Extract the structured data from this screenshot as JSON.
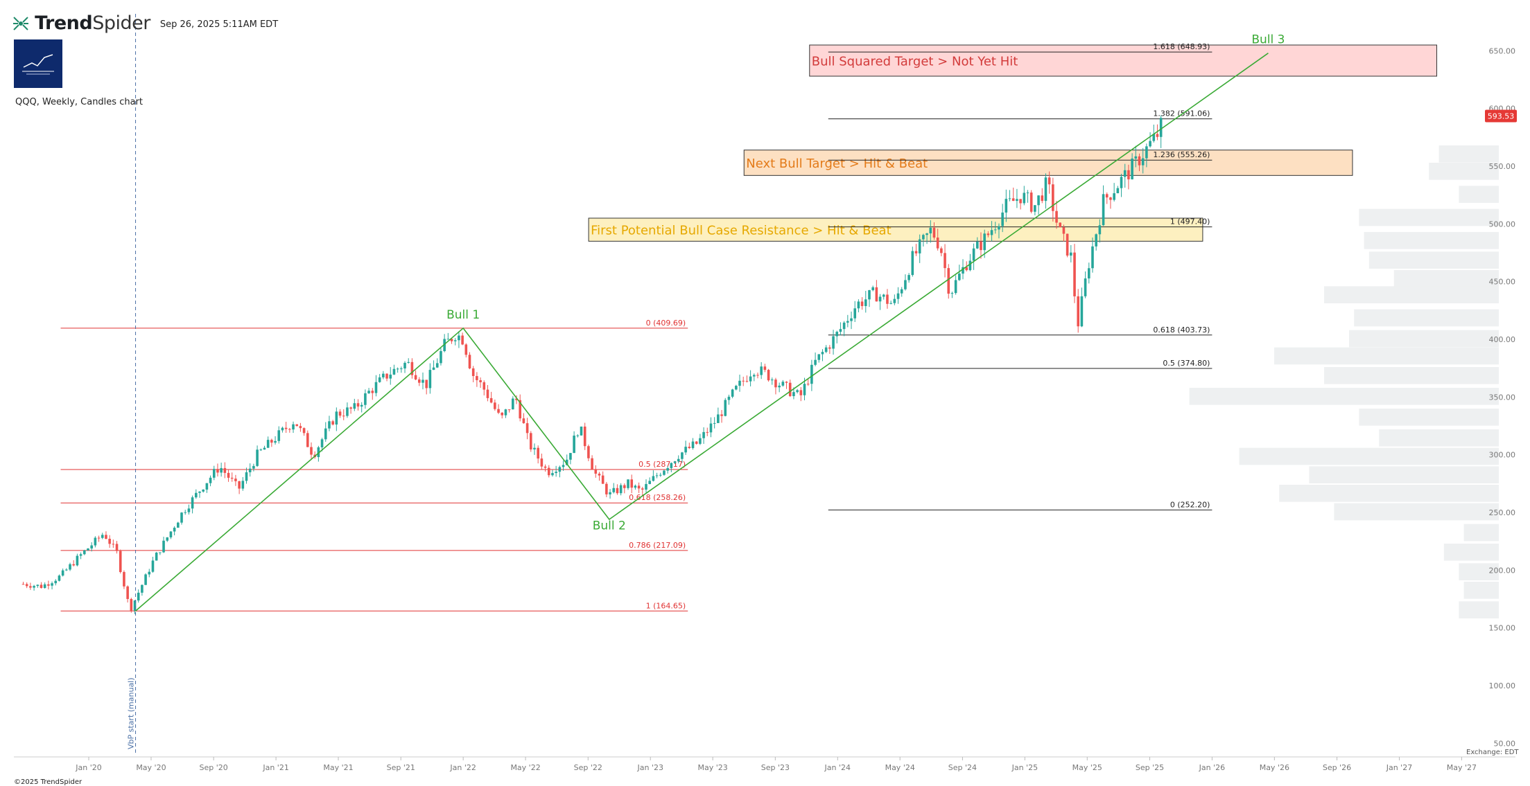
{
  "header": {
    "brand_bold": "Trend",
    "brand_light": "Spider",
    "timestamp": "Sep 26, 2025 5:11AM EDT",
    "symbol_info": "QQQ, Weekly, Candles chart"
  },
  "footer": {
    "copyright": "©2025 TrendSpider",
    "exchange": "Exchange: EDT"
  },
  "colors": {
    "up": "#26a69a",
    "down": "#ef5350",
    "wave": "#3aaa35",
    "fib_red": "#e03131",
    "fib_dark": "#222222",
    "zone_red": "#ffd6d6",
    "zone_orange": "#fde0c2",
    "zone_yellow": "#fdf0c0",
    "volume_profile": "#eef0f1",
    "vbp_line": "#4a6fa5",
    "price_tag": "#e53935"
  },
  "chart_data": {
    "type": "candlestick",
    "ylim": [
      40,
      670
    ],
    "y_ticks": [
      "650.00",
      "600.00",
      "550.00",
      "500.00",
      "450.00",
      "400.00",
      "350.00",
      "300.00",
      "250.00",
      "200.00",
      "150.00",
      "100.00",
      "50.00"
    ],
    "y_tick_values": [
      650,
      600,
      550,
      500,
      450,
      400,
      350,
      300,
      250,
      200,
      150,
      100,
      50
    ],
    "x_ticks": [
      "Jan '20",
      "May '20",
      "Sep '20",
      "Jan '21",
      "May '21",
      "Sep '21",
      "Jan '22",
      "May '22",
      "Sep '22",
      "Jan '23",
      "May '23",
      "Sep '23",
      "Jan '24",
      "May '24",
      "Sep '24",
      "Jan '25",
      "May '25",
      "Sep '25",
      "Jan '26",
      "May '26",
      "Sep '26",
      "Jan '27",
      "May '27"
    ],
    "x_tick_values": [
      2020.0,
      2020.333,
      2020.667,
      2021.0,
      2021.333,
      2021.667,
      2022.0,
      2022.333,
      2022.667,
      2023.0,
      2023.333,
      2023.667,
      2024.0,
      2024.333,
      2024.667,
      2025.0,
      2025.333,
      2025.667,
      2026.0,
      2026.333,
      2026.667,
      2027.0,
      2027.333
    ],
    "last_price": "593.53",
    "price_path": [
      [
        2019.65,
        188
      ],
      [
        2019.75,
        186
      ],
      [
        2019.85,
        195
      ],
      [
        2019.95,
        212
      ],
      [
        2020.08,
        232
      ],
      [
        2020.15,
        215
      ],
      [
        2020.22,
        165
      ],
      [
        2020.35,
        210
      ],
      [
        2020.5,
        250
      ],
      [
        2020.62,
        275
      ],
      [
        2020.7,
        290
      ],
      [
        2020.8,
        270
      ],
      [
        2020.9,
        300
      ],
      [
        2021.0,
        315
      ],
      [
        2021.1,
        330
      ],
      [
        2021.2,
        300
      ],
      [
        2021.32,
        335
      ],
      [
        2021.42,
        340
      ],
      [
        2021.5,
        355
      ],
      [
        2021.6,
        370
      ],
      [
        2021.7,
        380
      ],
      [
        2021.8,
        360
      ],
      [
        2021.9,
        395
      ],
      [
        2021.96,
        405
      ],
      [
        2022.0,
        400
      ],
      [
        2022.05,
        370
      ],
      [
        2022.12,
        355
      ],
      [
        2022.2,
        330
      ],
      [
        2022.28,
        350
      ],
      [
        2022.35,
        310
      ],
      [
        2022.45,
        285
      ],
      [
        2022.55,
        295
      ],
      [
        2022.62,
        325
      ],
      [
        2022.7,
        285
      ],
      [
        2022.78,
        265
      ],
      [
        2022.88,
        275
      ],
      [
        2022.95,
        268
      ],
      [
        2023.05,
        285
      ],
      [
        2023.15,
        300
      ],
      [
        2023.25,
        310
      ],
      [
        2023.35,
        330
      ],
      [
        2023.45,
        355
      ],
      [
        2023.55,
        375
      ],
      [
        2023.62,
        370
      ],
      [
        2023.7,
        360
      ],
      [
        2023.8,
        350
      ],
      [
        2023.88,
        380
      ],
      [
        2024.0,
        405
      ],
      [
        2024.1,
        430
      ],
      [
        2024.2,
        440
      ],
      [
        2024.3,
        430
      ],
      [
        2024.4,
        470
      ],
      [
        2024.5,
        495
      ],
      [
        2024.55,
        480
      ],
      [
        2024.6,
        440
      ],
      [
        2024.7,
        470
      ],
      [
        2024.8,
        490
      ],
      [
        2024.9,
        515
      ],
      [
        2024.98,
        525
      ],
      [
        2025.05,
        515
      ],
      [
        2025.12,
        535
      ],
      [
        2025.18,
        495
      ],
      [
        2025.25,
        470
      ],
      [
        2025.28,
        410
      ],
      [
        2025.34,
        465
      ],
      [
        2025.42,
        520
      ],
      [
        2025.5,
        535
      ],
      [
        2025.58,
        550
      ],
      [
        2025.65,
        565
      ],
      [
        2025.72,
        580
      ],
      [
        2025.74,
        593.53
      ]
    ],
    "waves": [
      {
        "label": "Bull 1",
        "x": 2022.0,
        "y": 409.69
      },
      {
        "label": "Bull 2",
        "x": 2022.78,
        "y": 258
      },
      {
        "label": "Bull 3",
        "x": 2026.3,
        "y": 648
      }
    ],
    "wave_line": [
      [
        2020.25,
        164.65
      ],
      [
        2022.0,
        409.69
      ],
      [
        2022.78,
        244
      ],
      [
        2026.3,
        648
      ]
    ],
    "fib_red": {
      "x_range": [
        2019.85,
        2023.2
      ],
      "levels": [
        {
          "value": 409.69,
          "label": "0 (409.69)"
        },
        {
          "value": 287.17,
          "label": "0.5 (287.17)"
        },
        {
          "value": 258.26,
          "label": "0.618 (258.26)"
        },
        {
          "value": 217.09,
          "label": "0.786 (217.09)"
        },
        {
          "value": 164.65,
          "label": "1 (164.65)"
        }
      ]
    },
    "fib_dark": {
      "x_range": [
        2023.95,
        2026.0
      ],
      "levels": [
        {
          "value": 648.93,
          "label": "1.618 (648.93)"
        },
        {
          "value": 591.06,
          "label": "1.382 (591.06)"
        },
        {
          "value": 555.26,
          "label": "1.236 (555.26)"
        },
        {
          "value": 497.4,
          "label": "1 (497.40)"
        },
        {
          "value": 403.73,
          "label": "0.618 (403.73)"
        },
        {
          "value": 374.8,
          "label": "0.5 (374.80)"
        },
        {
          "value": 252.2,
          "label": "0 (252.20)"
        }
      ]
    },
    "zones": [
      {
        "label": "Bull Squared Target > Not Yet Hit",
        "x": [
          2023.85,
          2027.2
        ],
        "y": [
          628,
          655
        ],
        "fill": "#ffd6d6",
        "text_color": "#d23b3b"
      },
      {
        "label": "Next Bull Target > Hit & Beat",
        "x": [
          2023.5,
          2026.75
        ],
        "y": [
          542,
          564
        ],
        "fill": "#fde0c2",
        "text_color": "#e37b1a"
      },
      {
        "label": "First Potential Bull Case Resistance > Hit & Beat",
        "x": [
          2022.67,
          2025.95
        ],
        "y": [
          485,
          505
        ],
        "fill": "#fdf0c0",
        "text_color": "#e6a800"
      }
    ],
    "vbp_label": "VbP start (manual)",
    "vbp_x": 2020.25,
    "volume_profile": [
      [
        560,
        0.12
      ],
      [
        545,
        0.14
      ],
      [
        525,
        0.08
      ],
      [
        505,
        0.28
      ],
      [
        485,
        0.27
      ],
      [
        468,
        0.26
      ],
      [
        452,
        0.21
      ],
      [
        438,
        0.35
      ],
      [
        418,
        0.29
      ],
      [
        400,
        0.3
      ],
      [
        385,
        0.45
      ],
      [
        368,
        0.35
      ],
      [
        350,
        0.62
      ],
      [
        332,
        0.28
      ],
      [
        314,
        0.24
      ],
      [
        298,
        0.52
      ],
      [
        282,
        0.38
      ],
      [
        266,
        0.44
      ],
      [
        250,
        0.33
      ],
      [
        232,
        0.07
      ],
      [
        215,
        0.11
      ],
      [
        198,
        0.08
      ],
      [
        182,
        0.07
      ],
      [
        165,
        0.08
      ]
    ]
  }
}
